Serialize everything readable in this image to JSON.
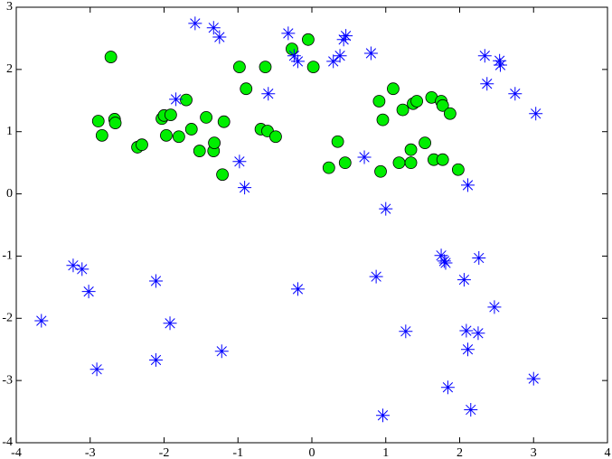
{
  "chart_data": {
    "type": "scatter",
    "xlim": [
      -4,
      4
    ],
    "ylim": [
      -4,
      3
    ],
    "xticks": [
      -4,
      -3,
      -2,
      -1,
      0,
      1,
      2,
      3,
      4
    ],
    "yticks": [
      -4,
      -3,
      -2,
      -1,
      0,
      1,
      2,
      3
    ],
    "box": true,
    "series": [
      {
        "color": "#00ee00",
        "marker": "circle",
        "x": [
          -2.72,
          -2.89,
          -2.84,
          -2.67,
          -2.66,
          -2.36,
          -2.3,
          -2.03,
          -2.0,
          -1.91,
          -1.97,
          -1.8,
          -1.7,
          -1.63,
          -1.52,
          -1.43,
          -1.33,
          -1.32,
          -1.19,
          -1.21,
          -0.98,
          -0.89,
          -0.63,
          -0.69,
          -0.6,
          -0.49,
          -0.27,
          -0.05,
          0.02,
          0.23,
          0.35,
          0.45,
          0.91,
          0.96,
          0.93,
          1.1,
          1.18,
          1.23,
          1.34,
          1.37,
          1.34,
          1.42,
          1.53,
          1.62,
          1.65,
          1.75,
          1.77,
          1.77,
          1.87,
          1.98
        ],
        "y": [
          2.2,
          1.17,
          0.94,
          1.2,
          1.14,
          0.75,
          0.79,
          1.21,
          1.26,
          1.27,
          0.94,
          0.92,
          1.51,
          1.04,
          0.69,
          1.23,
          0.69,
          0.82,
          1.16,
          0.31,
          2.04,
          1.69,
          2.04,
          1.04,
          1.01,
          0.92,
          2.33,
          2.48,
          2.04,
          0.42,
          0.84,
          0.5,
          1.49,
          1.19,
          0.36,
          1.69,
          0.5,
          1.35,
          0.71,
          1.45,
          0.5,
          1.49,
          0.82,
          1.55,
          0.55,
          1.49,
          1.42,
          0.55,
          1.29,
          0.39
        ]
      },
      {
        "color": "#0000ff",
        "marker": "star",
        "x": [
          -1.58,
          -1.33,
          -1.25,
          -0.32,
          -0.24,
          -0.19,
          0.29,
          0.38,
          0.43,
          0.46,
          0.8,
          -0.59,
          -1.84,
          -0.98,
          -0.91,
          0.71,
          1.0,
          2.34,
          2.37,
          2.54,
          2.55,
          2.75,
          3.03,
          2.11,
          -3.23,
          -3.11,
          -3.02,
          -3.66,
          -2.11,
          -1.92,
          -2.91,
          -2.11,
          -1.22,
          -0.19,
          0.87,
          1.27,
          0.96,
          1.75,
          1.79,
          1.81,
          2.26,
          2.06,
          2.47,
          2.09,
          2.25,
          2.11,
          1.84,
          2.15,
          3.0
        ],
        "y": [
          2.74,
          2.67,
          2.52,
          2.58,
          2.22,
          2.13,
          2.13,
          2.22,
          2.48,
          2.54,
          2.26,
          1.61,
          1.52,
          0.52,
          0.1,
          0.59,
          -0.24,
          2.22,
          1.77,
          2.14,
          2.07,
          1.61,
          1.29,
          0.14,
          -1.15,
          -1.21,
          -1.57,
          -2.04,
          -1.4,
          -2.08,
          -2.82,
          -2.67,
          -2.53,
          -1.53,
          -1.33,
          -2.21,
          -3.56,
          -0.99,
          -1.08,
          -1.11,
          -1.03,
          -1.38,
          -1.82,
          -2.2,
          -2.24,
          -2.5,
          -3.11,
          -3.47,
          -2.97
        ]
      }
    ]
  }
}
